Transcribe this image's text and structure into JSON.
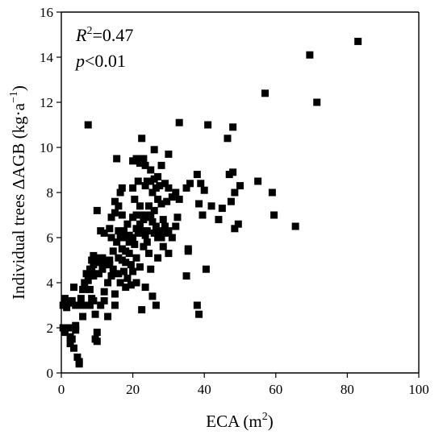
{
  "chart_data": {
    "type": "scatter",
    "xlabel": "ECA (m",
    "xlabel_sup": "2",
    "xlabel_end": ")",
    "ylabel": "Individual trees ΔAGB (kg·a",
    "ylabel_sup": "−1",
    "ylabel_end": ")",
    "xlim": [
      0,
      100
    ],
    "ylim": [
      0,
      16
    ],
    "xticks": [
      "0",
      "20",
      "40",
      "60",
      "80",
      "100"
    ],
    "yticks": [
      "0",
      "2",
      "4",
      "6",
      "8",
      "10",
      "12",
      "14",
      "16"
    ],
    "grid": false,
    "marker": "square",
    "color": "#000000",
    "annotations": {
      "r2_label": "R",
      "r2_sup": "2",
      "r2_value": "=0.47",
      "p_label": "p",
      "p_value": "<0.01"
    },
    "points": [
      [
        0.5,
        3.0
      ],
      [
        0.5,
        2.0
      ],
      [
        1,
        1.8
      ],
      [
        1,
        3.3
      ],
      [
        1.5,
        2.9
      ],
      [
        2,
        3.1
      ],
      [
        2,
        2.0
      ],
      [
        2.5,
        1.6
      ],
      [
        2.5,
        1.3
      ],
      [
        3,
        3.2
      ],
      [
        3,
        1.5
      ],
      [
        3.5,
        3.8
      ],
      [
        3.5,
        1.1
      ],
      [
        4,
        3.0
      ],
      [
        4,
        2.1
      ],
      [
        4,
        1.9
      ],
      [
        4.5,
        0.7
      ],
      [
        5,
        0.5
      ],
      [
        5,
        0.4
      ],
      [
        5,
        3.0
      ],
      [
        5.5,
        3.3
      ],
      [
        6,
        3.7
      ],
      [
        6,
        2.5
      ],
      [
        6.5,
        4.0
      ],
      [
        7,
        4.4
      ],
      [
        7,
        3.0
      ],
      [
        7.5,
        11.0
      ],
      [
        7.5,
        4.1
      ],
      [
        8,
        4.6
      ],
      [
        8,
        3.7
      ],
      [
        8,
        3.0
      ],
      [
        8.5,
        5.0
      ],
      [
        8.5,
        4.6
      ],
      [
        8.5,
        3.3
      ],
      [
        9,
        5.2
      ],
      [
        9,
        4.8
      ],
      [
        9,
        4.3
      ],
      [
        9,
        3.2
      ],
      [
        9.5,
        5.1
      ],
      [
        9.5,
        2.6
      ],
      [
        9.5,
        1.5
      ],
      [
        10,
        7.2
      ],
      [
        10,
        1.4
      ],
      [
        10,
        1.8
      ],
      [
        10.5,
        4.9
      ],
      [
        10.5,
        4.4
      ],
      [
        11,
        6.3
      ],
      [
        11,
        3.0
      ],
      [
        11.5,
        5.1
      ],
      [
        11.5,
        4.6
      ],
      [
        12,
        6.2
      ],
      [
        12,
        3.2
      ],
      [
        12,
        3.6
      ],
      [
        12.5,
        4.8
      ],
      [
        13,
        4.0
      ],
      [
        13,
        2.5
      ],
      [
        13.5,
        6.4
      ],
      [
        13.5,
        5.0
      ],
      [
        13.5,
        4.8
      ],
      [
        14,
        6.9
      ],
      [
        14,
        6.0
      ],
      [
        14,
        4.3
      ],
      [
        14.5,
        5.4
      ],
      [
        14.5,
        4.6
      ],
      [
        15,
        7.6
      ],
      [
        15,
        7.1
      ],
      [
        15,
        3.5
      ],
      [
        15,
        3.0
      ],
      [
        15.5,
        9.5
      ],
      [
        15.5,
        5.8
      ],
      [
        16,
        7.4
      ],
      [
        16,
        6.3
      ],
      [
        16,
        5.1
      ],
      [
        16,
        4.4
      ],
      [
        16.5,
        8.0
      ],
      [
        16.5,
        6.0
      ],
      [
        16.5,
        4.0
      ],
      [
        17,
        8.2
      ],
      [
        17,
        7.0
      ],
      [
        17,
        5.5
      ],
      [
        17,
        5.0
      ],
      [
        17.5,
        6.3
      ],
      [
        17.5,
        4.5
      ],
      [
        18,
        6.0
      ],
      [
        18,
        5.4
      ],
      [
        18,
        4.9
      ],
      [
        18,
        3.8
      ],
      [
        18.5,
        6.6
      ],
      [
        18.5,
        4.2
      ],
      [
        19,
        6.1
      ],
      [
        19,
        5.8
      ],
      [
        19,
        5.3
      ],
      [
        19.5,
        4.8
      ],
      [
        19.5,
        3.9
      ],
      [
        20,
        9.4
      ],
      [
        20,
        8.2
      ],
      [
        20,
        6.9
      ],
      [
        20,
        6.0
      ],
      [
        20,
        4.5
      ],
      [
        20.5,
        7.7
      ],
      [
        20.5,
        5.7
      ],
      [
        21,
        9.5
      ],
      [
        21,
        7.0
      ],
      [
        21,
        6.4
      ],
      [
        21,
        5.1
      ],
      [
        21,
        4.0
      ],
      [
        21.5,
        8.5
      ],
      [
        21.5,
        6.2
      ],
      [
        22,
        9.3
      ],
      [
        22,
        7.4
      ],
      [
        22,
        6.6
      ],
      [
        22,
        4.7
      ],
      [
        22.5,
        10.4
      ],
      [
        22.5,
        7.0
      ],
      [
        22.5,
        6.3
      ],
      [
        22.5,
        2.8
      ],
      [
        23,
        9.5
      ],
      [
        23,
        6.8
      ],
      [
        23,
        5.6
      ],
      [
        23.5,
        9.2
      ],
      [
        23.5,
        8.3
      ],
      [
        23.5,
        6.1
      ],
      [
        23.5,
        3.8
      ],
      [
        24,
        8.5
      ],
      [
        24,
        6.3
      ],
      [
        24,
        5.8
      ],
      [
        24.5,
        7.4
      ],
      [
        24.5,
        7.0
      ],
      [
        24.5,
        5.3
      ],
      [
        25,
        9.0
      ],
      [
        25,
        8.5
      ],
      [
        25,
        6.9
      ],
      [
        25,
        4.6
      ],
      [
        25.5,
        8.0
      ],
      [
        25.5,
        6.7
      ],
      [
        25.5,
        3.4
      ],
      [
        26,
        9.9
      ],
      [
        26,
        8.6
      ],
      [
        26,
        7.2
      ],
      [
        26,
        6.2
      ],
      [
        26.5,
        8.2
      ],
      [
        26.5,
        6.5
      ],
      [
        26.5,
        3.0
      ],
      [
        27,
        8.7
      ],
      [
        27,
        7.7
      ],
      [
        27,
        6.0
      ],
      [
        27,
        5.1
      ],
      [
        27.5,
        8.3
      ],
      [
        27.5,
        6.3
      ],
      [
        28,
        9.2
      ],
      [
        28,
        7.5
      ],
      [
        28,
        6.0
      ],
      [
        28.5,
        6.8
      ],
      [
        28.5,
        5.6
      ],
      [
        29,
        8.4
      ],
      [
        29,
        6.5
      ],
      [
        29.5,
        7.6
      ],
      [
        29.5,
        6.2
      ],
      [
        30,
        9.7
      ],
      [
        30,
        8.2
      ],
      [
        30,
        6.3
      ],
      [
        30,
        5.3
      ],
      [
        31,
        7.8
      ],
      [
        31,
        6.0
      ],
      [
        32,
        8.0
      ],
      [
        32,
        6.5
      ],
      [
        32.5,
        6.9
      ],
      [
        33,
        11.1
      ],
      [
        33,
        7.7
      ],
      [
        35,
        8.2
      ],
      [
        35,
        4.3
      ],
      [
        35.5,
        5.4
      ],
      [
        35.5,
        5.5
      ],
      [
        36,
        8.4
      ],
      [
        38,
        8.8
      ],
      [
        38,
        3.0
      ],
      [
        38.5,
        7.5
      ],
      [
        38.5,
        2.6
      ],
      [
        39,
        8.4
      ],
      [
        39.5,
        7.0
      ],
      [
        40,
        8.1
      ],
      [
        40.5,
        4.6
      ],
      [
        41,
        11.0
      ],
      [
        42,
        7.4
      ],
      [
        44,
        6.8
      ],
      [
        45,
        7.3
      ],
      [
        46.5,
        10.4
      ],
      [
        47,
        8.8
      ],
      [
        47.5,
        7.6
      ],
      [
        48,
        10.9
      ],
      [
        48,
        8.9
      ],
      [
        48.5,
        6.4
      ],
      [
        48.5,
        8.0
      ],
      [
        49.5,
        6.6
      ],
      [
        50,
        8.3
      ],
      [
        55,
        8.5
      ],
      [
        57,
        12.4
      ],
      [
        59,
        8.0
      ],
      [
        59.5,
        7.0
      ],
      [
        65.5,
        6.5
      ],
      [
        69.5,
        14.1
      ],
      [
        71.5,
        12.0
      ],
      [
        83,
        14.7
      ]
    ]
  }
}
